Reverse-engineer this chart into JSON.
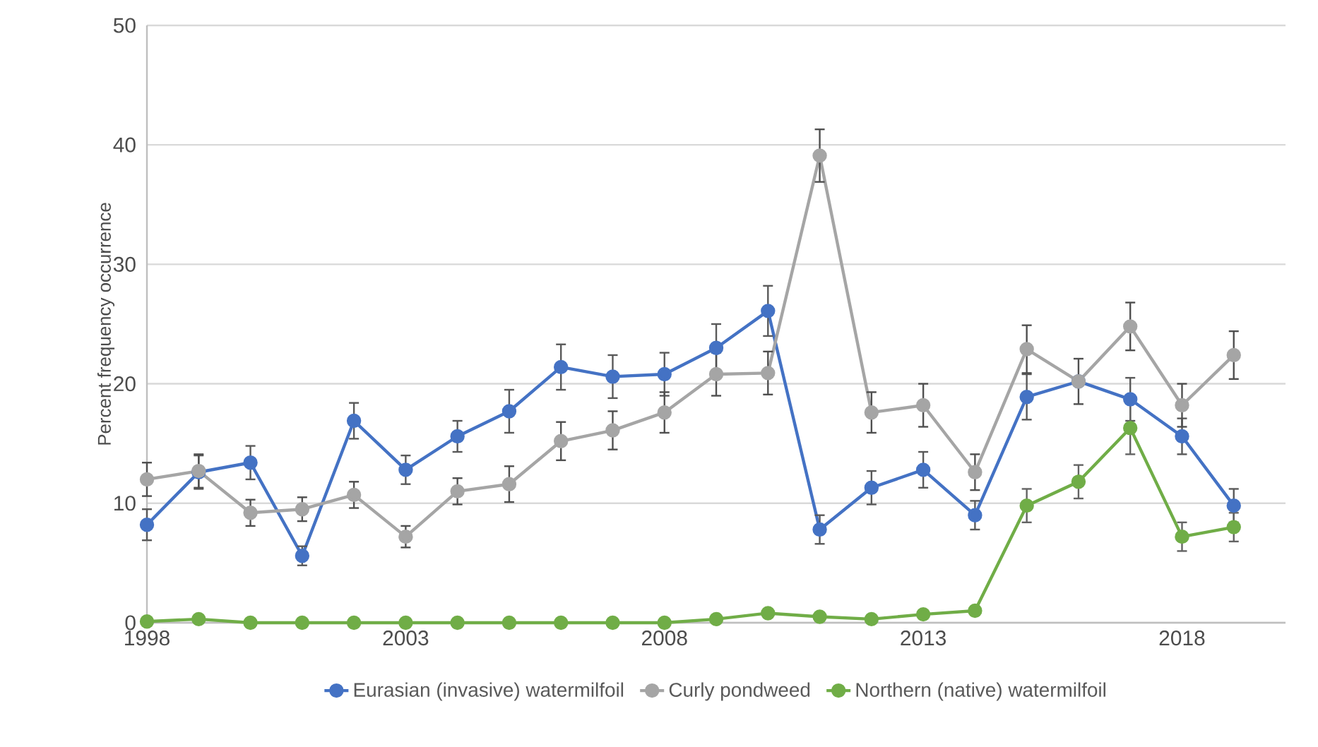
{
  "chart_data": {
    "type": "line",
    "ylabel": "Percent frequency occurrence",
    "x": [
      1998,
      1999,
      2000,
      2001,
      2002,
      2003,
      2004,
      2005,
      2006,
      2007,
      2008,
      2009,
      2010,
      2011,
      2012,
      2013,
      2014,
      2015,
      2016,
      2017,
      2018,
      2019
    ],
    "xlim": [
      1998,
      2020
    ],
    "xticks": [
      1998,
      2003,
      2008,
      2013,
      2018
    ],
    "ylim": [
      0,
      50
    ],
    "yticks": [
      0,
      10,
      20,
      30,
      40,
      50
    ],
    "grid": "y",
    "legend": "bottom",
    "marker": "circle",
    "line_style": "solid",
    "series": [
      {
        "name": "Eurasian (invasive) watermilfoil",
        "color": "#4472c4",
        "values": [
          8.2,
          12.6,
          13.4,
          5.6,
          16.9,
          12.8,
          15.6,
          17.7,
          21.4,
          20.6,
          20.8,
          23.0,
          26.1,
          7.8,
          11.3,
          12.8,
          9.0,
          18.9,
          20.2,
          18.7,
          15.6,
          9.8
        ],
        "errors": [
          1.3,
          1.4,
          1.4,
          0.8,
          1.5,
          1.2,
          1.3,
          1.8,
          1.9,
          1.8,
          1.8,
          2.0,
          2.1,
          1.2,
          1.4,
          1.5,
          1.2,
          1.9,
          null,
          1.8,
          1.5,
          1.4
        ]
      },
      {
        "name": "Curly pondweed",
        "color": "#a5a5a5",
        "values": [
          12.0,
          12.7,
          9.2,
          9.5,
          10.7,
          7.2,
          11.0,
          11.6,
          15.2,
          16.1,
          17.6,
          20.8,
          20.9,
          39.1,
          17.6,
          18.2,
          12.6,
          22.9,
          20.2,
          24.8,
          18.2,
          22.4
        ],
        "errors": [
          1.4,
          1.4,
          1.1,
          1.0,
          1.1,
          0.9,
          1.1,
          1.5,
          1.6,
          1.6,
          1.7,
          1.8,
          1.8,
          2.2,
          1.7,
          1.8,
          1.5,
          2.0,
          1.9,
          2.0,
          1.8,
          2.0
        ]
      },
      {
        "name": "Northern (native) watermilfoil",
        "color": "#70ad47",
        "values": [
          0.1,
          0.3,
          0,
          0,
          0,
          0,
          0,
          0,
          0,
          0,
          0,
          0.3,
          0.8,
          0.5,
          0.3,
          0.7,
          1.0,
          9.8,
          11.8,
          16.3,
          7.2,
          8.0
        ],
        "errors": [
          null,
          null,
          null,
          null,
          null,
          null,
          null,
          null,
          null,
          null,
          null,
          null,
          null,
          null,
          null,
          null,
          null,
          1.4,
          1.4,
          2.2,
          1.2,
          1.2
        ]
      }
    ]
  }
}
